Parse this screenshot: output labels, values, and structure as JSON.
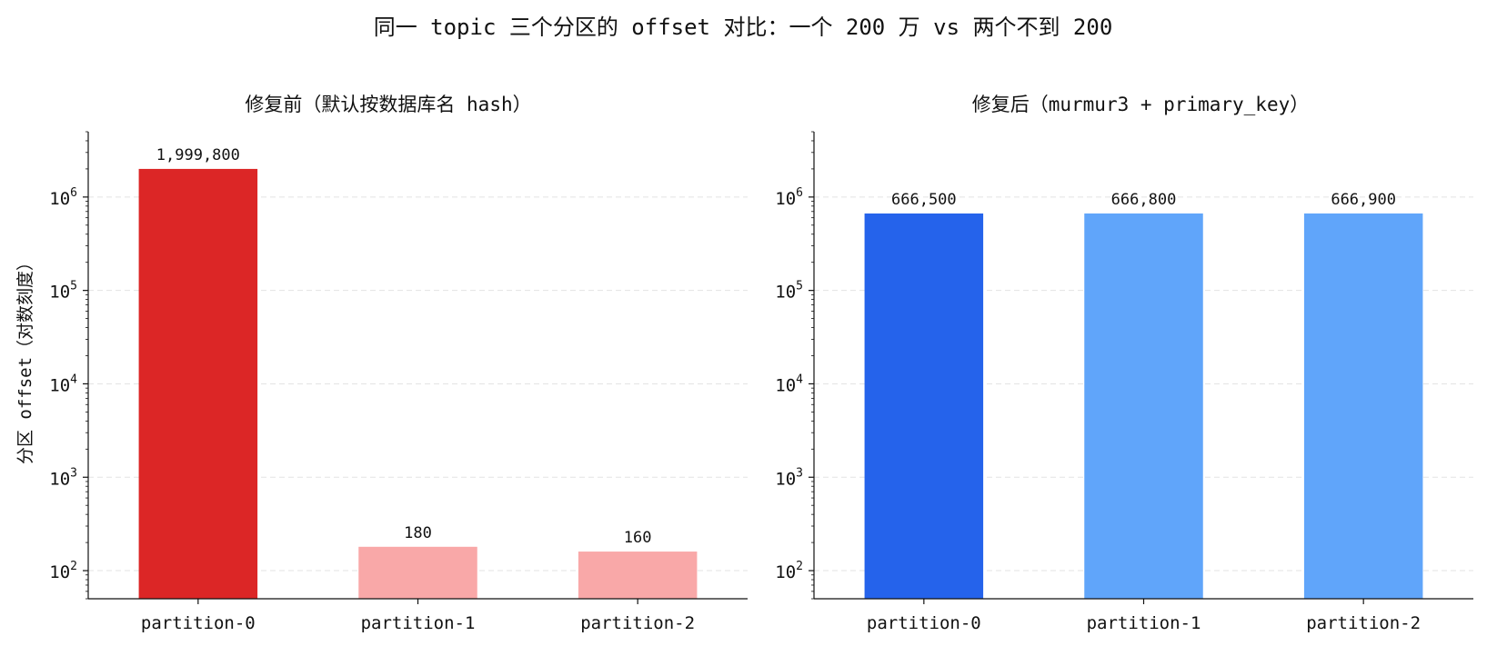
{
  "figure_title": "同一 topic 三个分区的 offset 对比：一个 200 万 vs 两个不到 200",
  "chart_data": [
    {
      "type": "bar",
      "title": "修复前（默认按数据库名 hash）",
      "xlabel": "",
      "ylabel": "分区 offset（对数刻度）",
      "yscale": "log",
      "ylim": [
        50,
        5000000
      ],
      "yticks": [
        100,
        1000,
        10000,
        100000,
        1000000
      ],
      "ytick_labels": [
        {
          "base": "10",
          "exp": "2"
        },
        {
          "base": "10",
          "exp": "3"
        },
        {
          "base": "10",
          "exp": "4"
        },
        {
          "base": "10",
          "exp": "5"
        },
        {
          "base": "10",
          "exp": "6"
        }
      ],
      "grid": true,
      "categories": [
        "partition-0",
        "partition-1",
        "partition-2"
      ],
      "values": [
        1999800,
        180,
        160
      ],
      "data_labels": [
        "1,999,800",
        "180",
        "160"
      ],
      "colors": [
        "#dc2626",
        "#f9a8a8",
        "#f9a8a8"
      ]
    },
    {
      "type": "bar",
      "title": "修复后（murmur3 + primary_key）",
      "xlabel": "",
      "ylabel": "",
      "yscale": "log",
      "ylim": [
        50,
        5000000
      ],
      "yticks": [
        100,
        1000,
        10000,
        100000,
        1000000
      ],
      "ytick_labels": [
        {
          "base": "10",
          "exp": "2"
        },
        {
          "base": "10",
          "exp": "3"
        },
        {
          "base": "10",
          "exp": "4"
        },
        {
          "base": "10",
          "exp": "5"
        },
        {
          "base": "10",
          "exp": "6"
        }
      ],
      "grid": true,
      "categories": [
        "partition-0",
        "partition-1",
        "partition-2"
      ],
      "values": [
        666500,
        666800,
        666900
      ],
      "data_labels": [
        "666,500",
        "666,800",
        "666,900"
      ],
      "colors": [
        "#2563eb",
        "#60a5fa",
        "#60a5fa"
      ]
    }
  ]
}
